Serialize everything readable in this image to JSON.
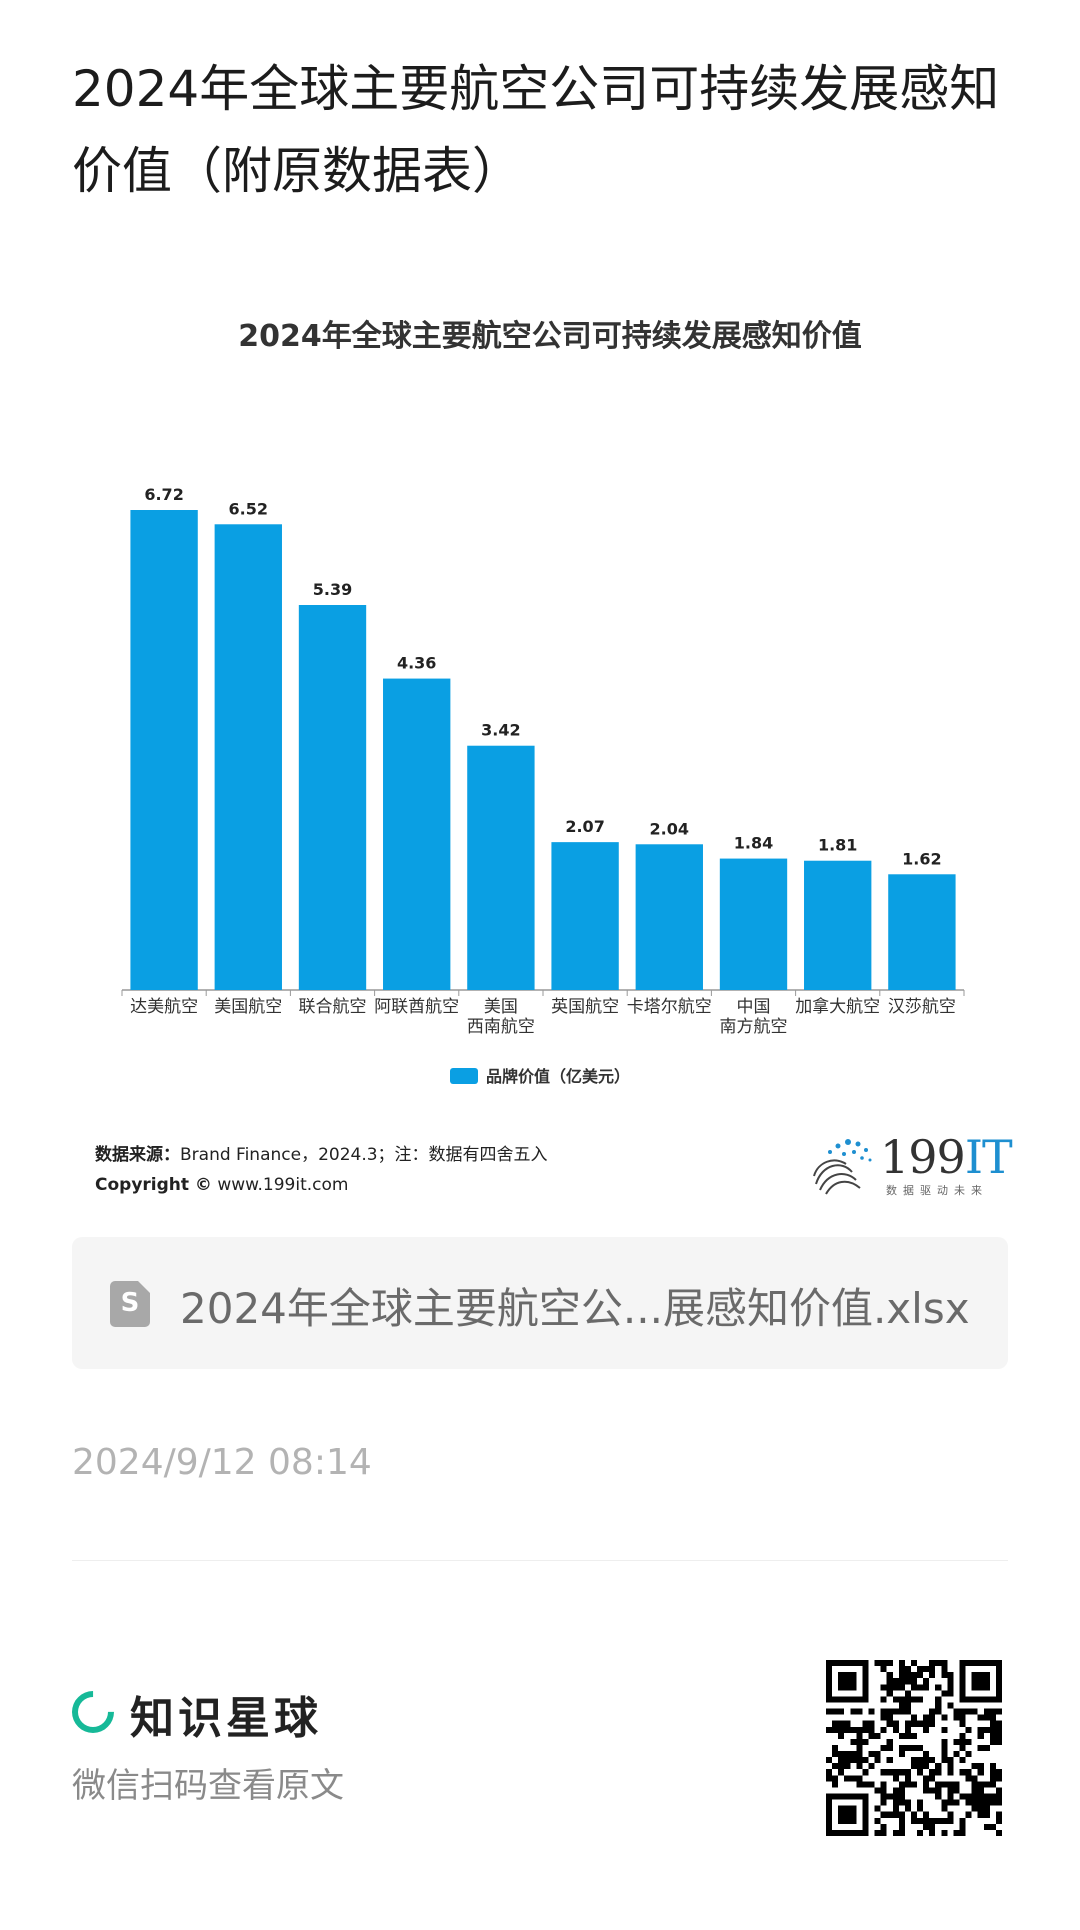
{
  "page_title": "2024年全球主要航空公司可持续发展感知价值（附原数据表）",
  "chart_data": {
    "type": "bar",
    "title": "2024年全球主要航空公司可持续发展感知价值",
    "categories": [
      "达美航空",
      "美国航空",
      "联合航空",
      "阿联酋航空",
      "美国\n西南航空",
      "英国航空",
      "卡塔尔航空",
      "中国\n南方航空",
      "加拿大航空",
      "汉莎航空"
    ],
    "series": [
      {
        "name": "品牌价值（亿美元）",
        "values": [
          6.72,
          6.52,
          5.39,
          4.36,
          3.42,
          2.07,
          2.04,
          1.84,
          1.81,
          1.62
        ],
        "color": "#0a9fe3"
      }
    ],
    "ylim": [
      0,
      7
    ],
    "xlabel": "",
    "ylabel": "",
    "grid": false,
    "legend": "bottom-center",
    "data_labels": true
  },
  "source": {
    "label": "数据来源：",
    "text": "Brand Finance，2024.3；注：数据有四舍五入",
    "copyright_label": "Copyright ©",
    "copyright_url": "www.199it.com"
  },
  "brand": {
    "number": "199",
    "suffix": "IT",
    "tagline": "数据驱动未来"
  },
  "attachment": {
    "file_name": "2024年全球主要航空公...展感知价值.xlsx",
    "icon": "spreadsheet-file-icon",
    "icon_letter": "S"
  },
  "timestamp": "2024/9/12 08:14",
  "footer": {
    "app_name": "知识星球",
    "scan_hint": "微信扫码查看原文",
    "accent_color": "#16b998"
  }
}
